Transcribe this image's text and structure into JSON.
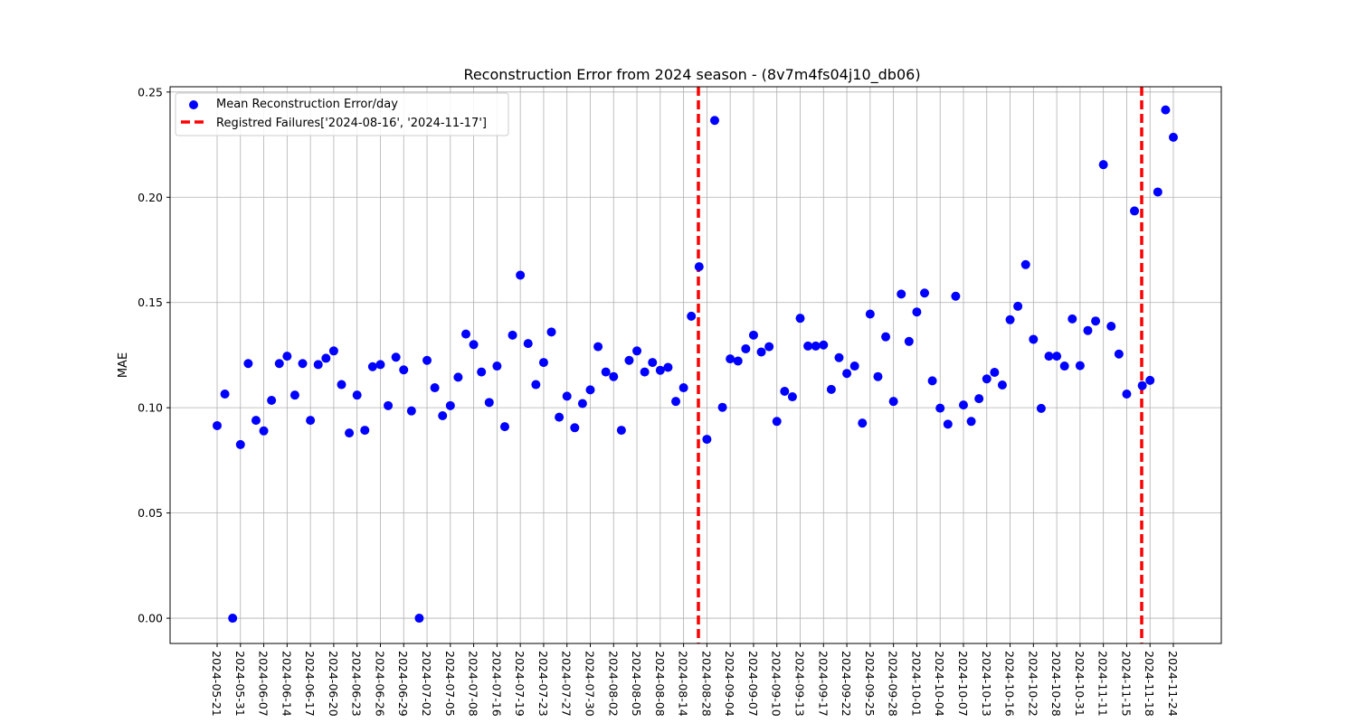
{
  "chart_data": {
    "type": "scatter",
    "title": "Reconstruction Error from 2024 season - (8v7m4fs04j10_db06)",
    "xlabel": "",
    "ylabel": "MAE",
    "ylim": [
      -0.012,
      0.2525
    ],
    "yticks": [
      0.0,
      0.05,
      0.1,
      0.15,
      0.2,
      0.25
    ],
    "ytick_labels": [
      "0.00",
      "0.05",
      "0.10",
      "0.15",
      "0.20",
      "0.25"
    ],
    "xticks": [
      "2024-05-21",
      "2024-05-31",
      "2024-06-07",
      "2024-06-14",
      "2024-06-17",
      "2024-06-20",
      "2024-06-23",
      "2024-06-26",
      "2024-06-29",
      "2024-07-02",
      "2024-07-05",
      "2024-07-08",
      "2024-07-16",
      "2024-07-19",
      "2024-07-23",
      "2024-07-27",
      "2024-07-30",
      "2024-08-02",
      "2024-08-05",
      "2024-08-08",
      "2024-08-14",
      "2024-08-28",
      "2024-09-04",
      "2024-09-07",
      "2024-09-10",
      "2024-09-13",
      "2024-09-17",
      "2024-09-22",
      "2024-09-25",
      "2024-09-28",
      "2024-10-01",
      "2024-10-04",
      "2024-10-07",
      "2024-10-13",
      "2024-10-16",
      "2024-10-22",
      "2024-10-28",
      "2024-10-31",
      "2024-11-11",
      "2024-11-15",
      "2024-11-18",
      "2024-11-24"
    ],
    "grid": true,
    "legend_position": "upper-left",
    "series": [
      {
        "name": "Mean Reconstruction Error/day",
        "kind": "scatter",
        "color": "#0000ff",
        "values": [
          0.0915,
          0.1065,
          0.0,
          0.0825,
          0.121,
          0.094,
          0.089,
          0.1035,
          0.121,
          0.1245,
          0.106,
          0.121,
          0.094,
          0.1205,
          0.1235,
          0.127,
          0.111,
          0.088,
          0.106,
          0.0893,
          0.1195,
          0.1205,
          0.101,
          0.124,
          0.118,
          0.0985,
          0.0,
          0.1225,
          0.1095,
          0.0962,
          0.101,
          0.1145,
          0.135,
          0.13,
          0.117,
          0.1025,
          0.1198,
          0.091,
          0.1345,
          0.163,
          0.1305,
          0.111,
          0.1215,
          0.136,
          0.0955,
          0.1055,
          0.0905,
          0.102,
          0.1085,
          0.129,
          0.117,
          0.1148,
          0.0893,
          0.1225,
          0.127,
          0.117,
          0.1215,
          0.1178,
          0.1192,
          0.103,
          0.1095,
          0.1435,
          0.167,
          0.085,
          0.2365,
          0.1002,
          0.1232,
          0.1222,
          0.128,
          0.1345,
          0.1265,
          0.129,
          0.0935,
          0.1078,
          0.1052,
          0.1425,
          0.1293,
          0.1293,
          0.1298,
          0.1087,
          0.1238,
          0.1163,
          0.1198,
          0.0927,
          0.1445,
          0.1148,
          0.1337,
          0.103,
          0.154,
          0.1315,
          0.1455,
          0.1545,
          0.1128,
          0.0998,
          0.0922,
          0.153,
          0.1013,
          0.0935,
          0.1043,
          0.1137,
          0.1168,
          0.1108,
          0.1418,
          0.1482,
          0.168,
          0.1325,
          0.0997,
          0.1245,
          0.1245,
          0.1198,
          0.1422,
          0.12,
          0.1367,
          0.1412,
          0.2155,
          0.1387,
          0.1255,
          0.1065,
          0.1935,
          0.1105,
          0.113,
          0.2025,
          0.2415,
          0.2285
        ]
      },
      {
        "name": "Registred Failures['2024-08-16', '2024-11-17']",
        "kind": "vline",
        "color": "#ff0000",
        "dates": [
          "2024-08-16",
          "2024-11-17"
        ]
      }
    ]
  }
}
